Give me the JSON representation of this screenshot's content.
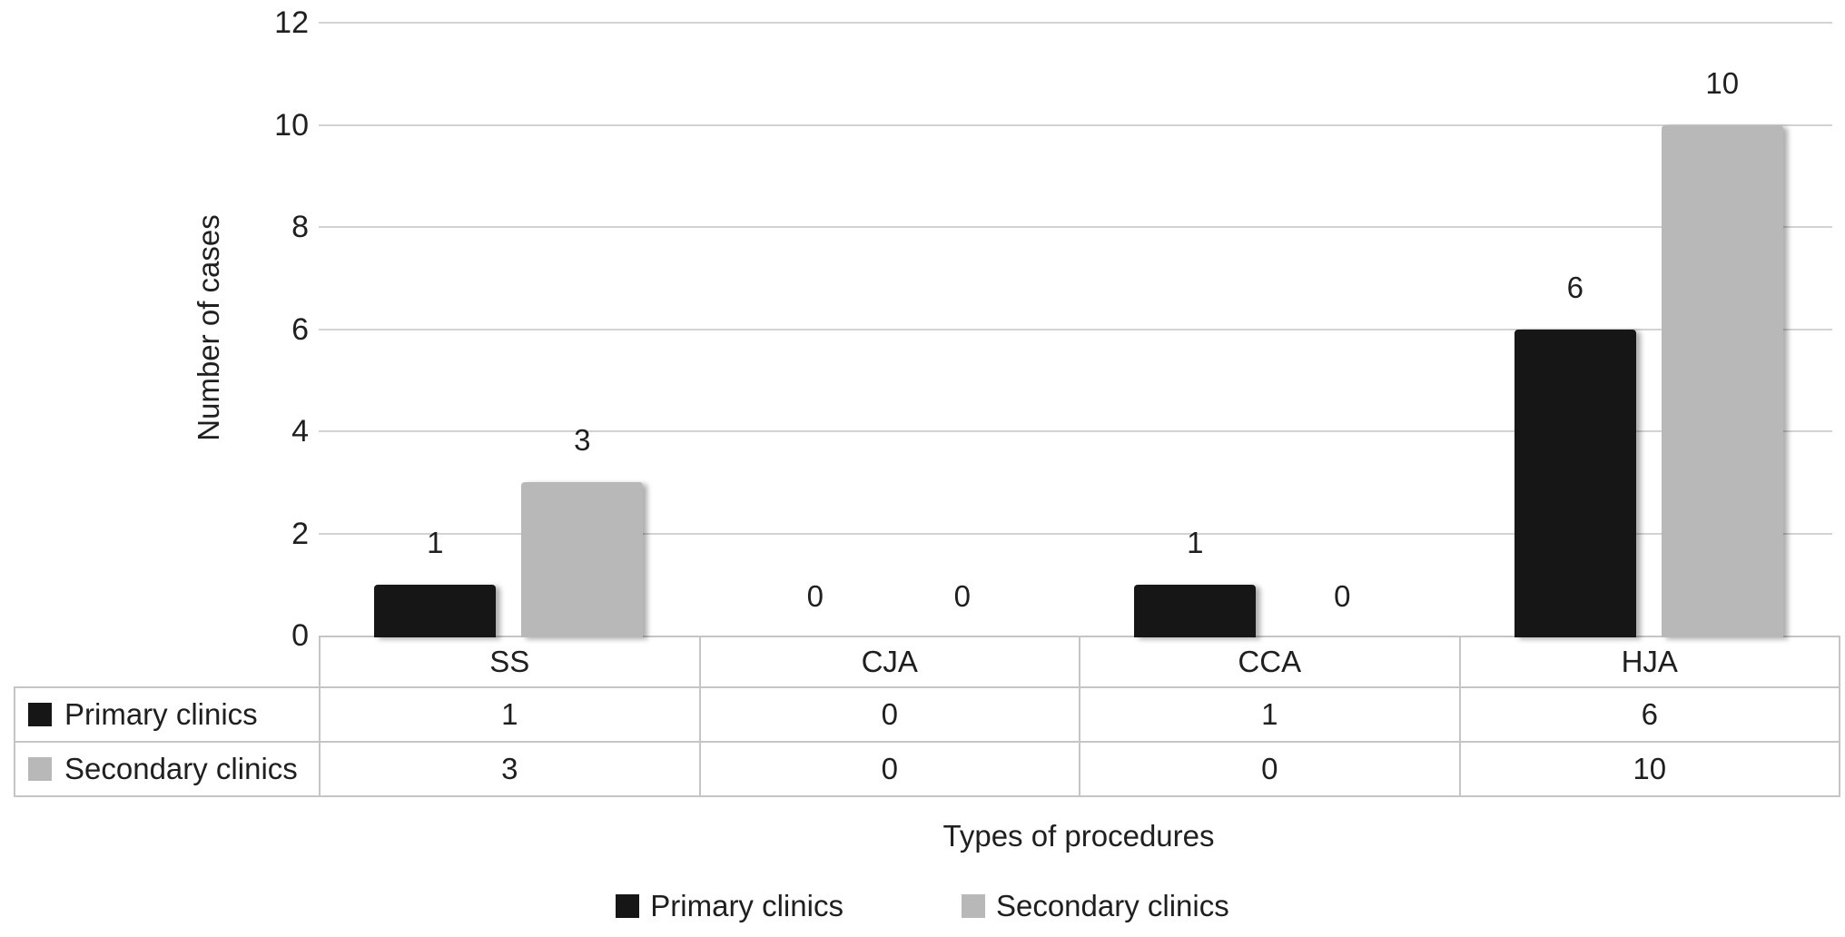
{
  "chart_data": {
    "type": "bar",
    "title": "",
    "categories": [
      "SS",
      "CJA",
      "CCA",
      "HJA"
    ],
    "series": [
      {
        "name": "Primary clinics",
        "color": "#161616",
        "values": [
          1,
          0,
          1,
          6
        ]
      },
      {
        "name": "Secondary clinics",
        "color": "#b8b8b8",
        "values": [
          3,
          0,
          0,
          10
        ]
      }
    ],
    "xlabel": "Types of procedures",
    "ylabel": "Number of cases",
    "ylim": [
      0,
      12
    ],
    "yticks": [
      0,
      2,
      4,
      6,
      8,
      10,
      12
    ],
    "grid": true,
    "bar_value_labels": true,
    "legend_position": "bottom",
    "data_table": {
      "columns": [
        "SS",
        "CJA",
        "CCA",
        "HJA"
      ],
      "rows": [
        {
          "label": "Primary clinics",
          "values": [
            1,
            0,
            1,
            6
          ]
        },
        {
          "label": "Secondary clinics",
          "values": [
            3,
            0,
            0,
            10
          ]
        }
      ]
    }
  },
  "colors": {
    "background": "#ffffff",
    "text": "#1f1f1f",
    "gridline": "#d3d3d3",
    "table_border": "#c5c5c5",
    "primary_series": "#161616",
    "secondary_series": "#b8b8b8"
  }
}
